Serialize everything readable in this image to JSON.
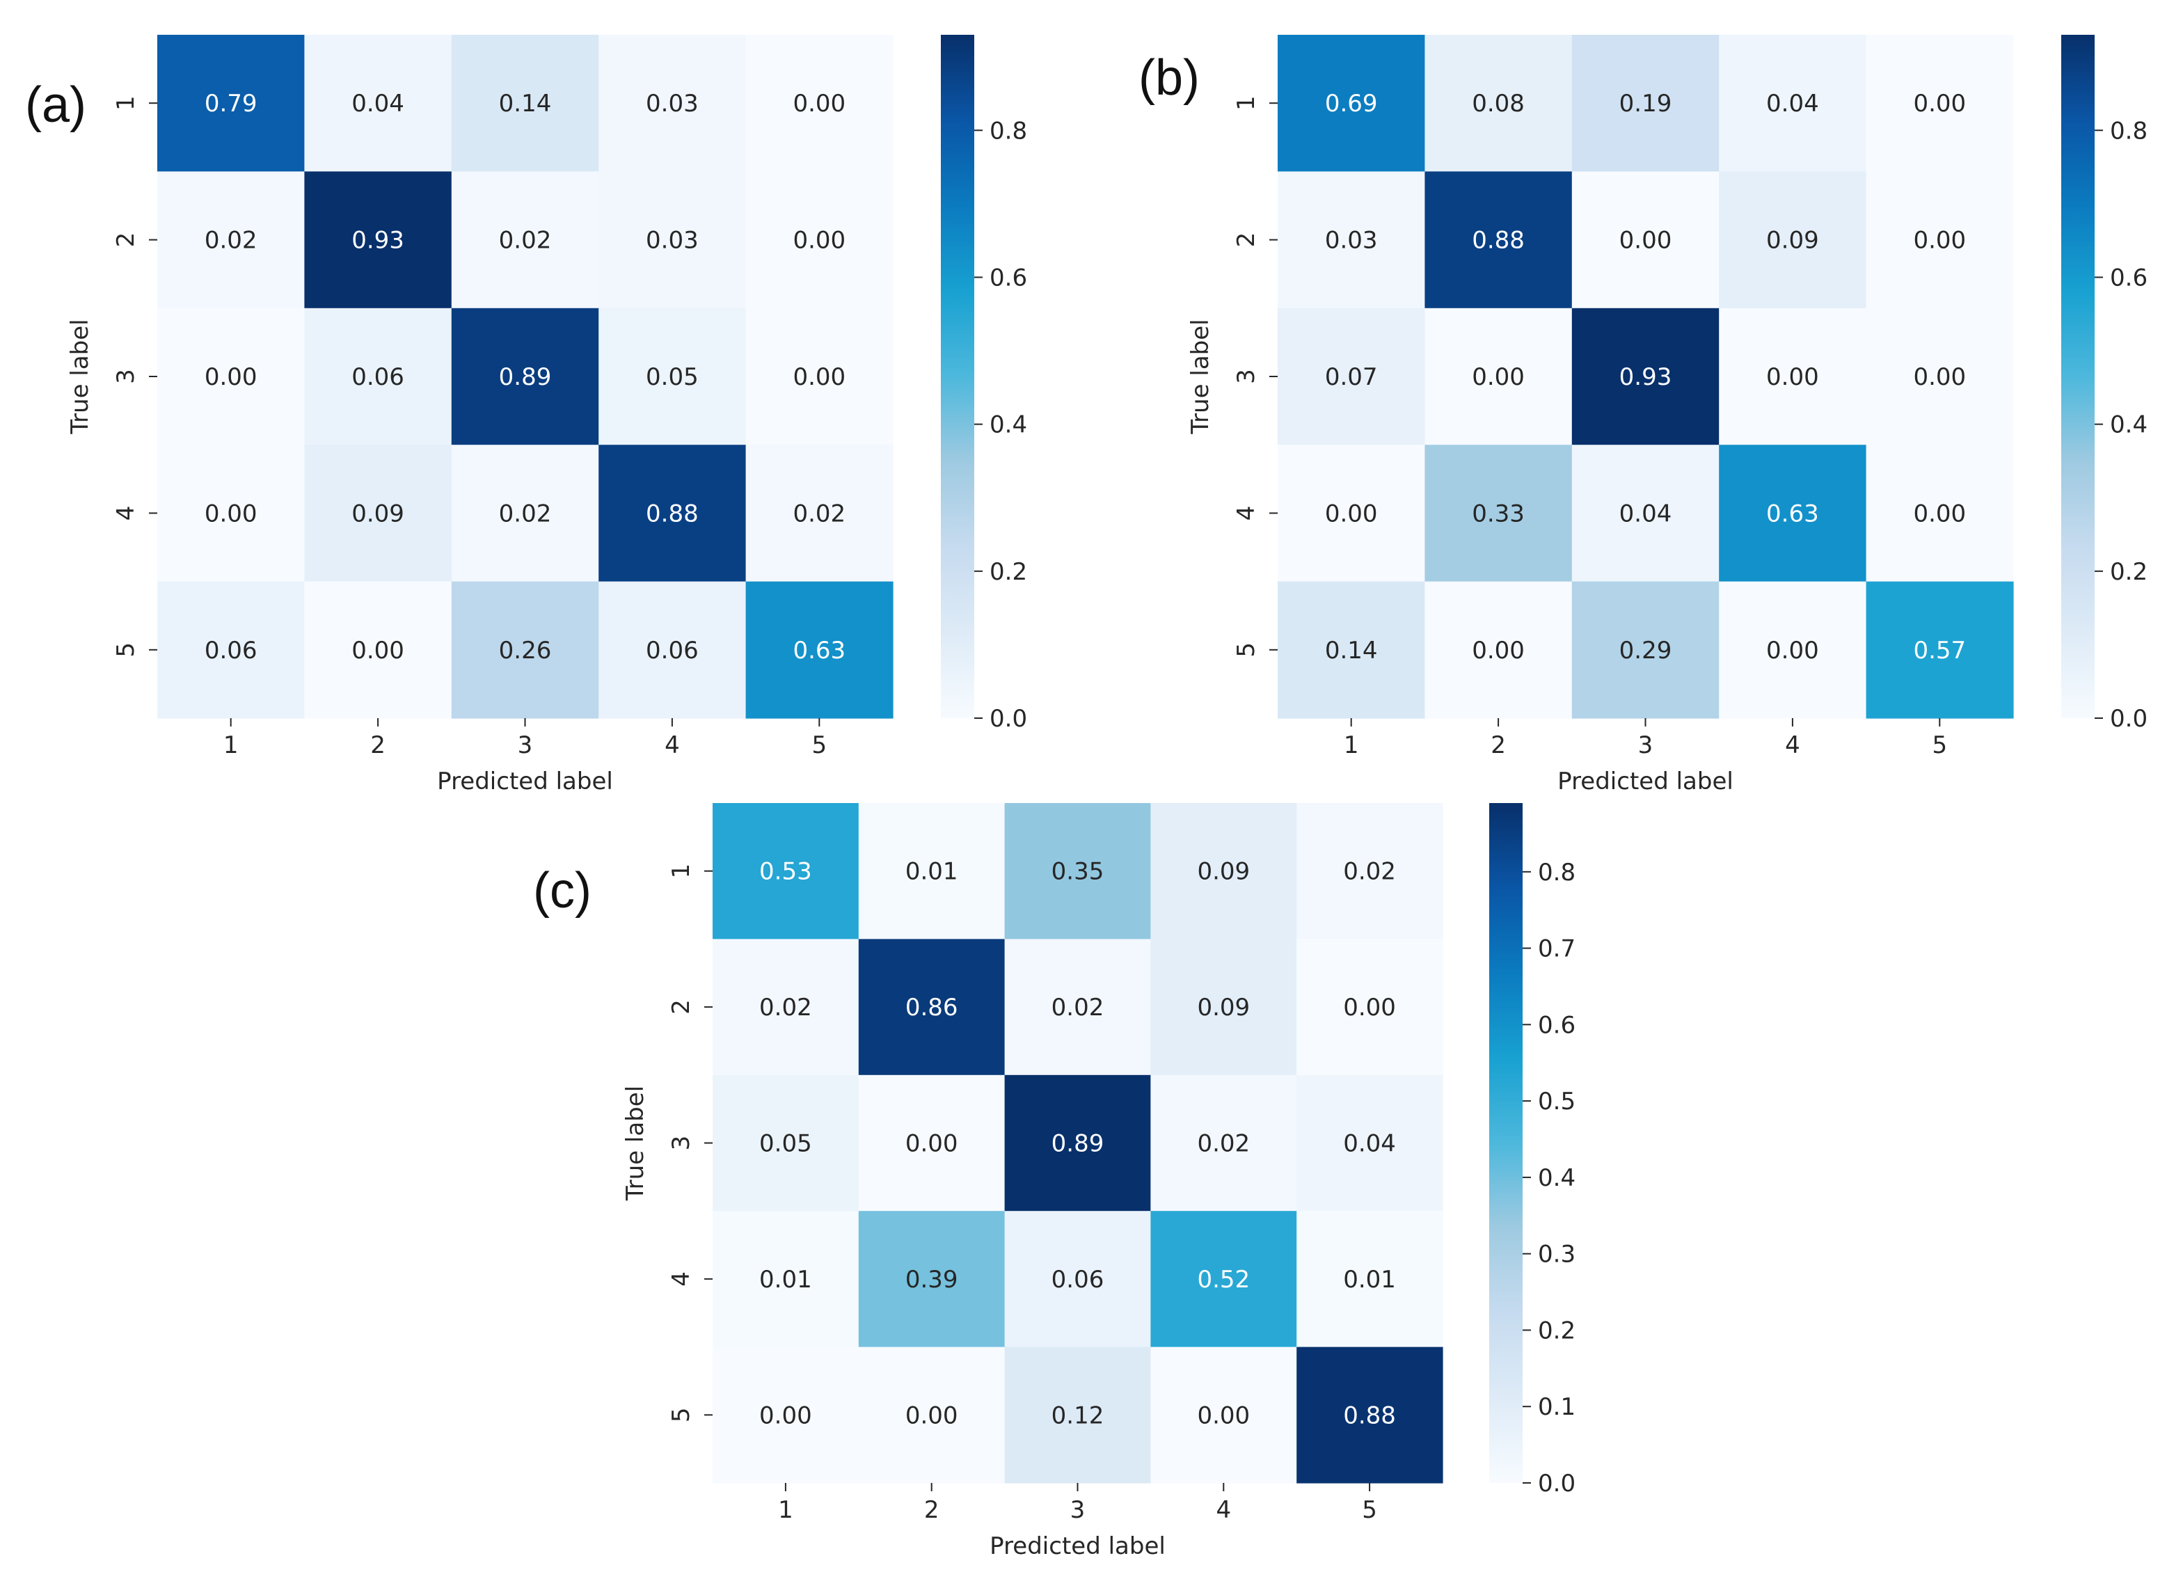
{
  "chart_data": [
    {
      "type": "heatmap",
      "panel_label": "(a)",
      "xlabel": "Predicted label",
      "ylabel": "True label",
      "x_categories": [
        "1",
        "2",
        "3",
        "4",
        "5"
      ],
      "y_categories": [
        "1",
        "2",
        "3",
        "4",
        "5"
      ],
      "values": [
        [
          "0.79",
          "0.04",
          "0.14",
          "0.03",
          "0.00"
        ],
        [
          "0.02",
          "0.93",
          "0.02",
          "0.03",
          "0.00"
        ],
        [
          "0.00",
          "0.06",
          "0.89",
          "0.05",
          "0.00"
        ],
        [
          "0.00",
          "0.09",
          "0.02",
          "0.88",
          "0.02"
        ],
        [
          "0.06",
          "0.00",
          "0.26",
          "0.06",
          "0.63"
        ]
      ],
      "colorbar": {
        "min": 0.0,
        "max": 0.93,
        "ticks": [
          "0.0",
          "0.2",
          "0.4",
          "0.6",
          "0.8"
        ]
      },
      "colormap": "Blues"
    },
    {
      "type": "heatmap",
      "panel_label": "(b)",
      "xlabel": "Predicted label",
      "ylabel": "True label",
      "x_categories": [
        "1",
        "2",
        "3",
        "4",
        "5"
      ],
      "y_categories": [
        "1",
        "2",
        "3",
        "4",
        "5"
      ],
      "values": [
        [
          "0.69",
          "0.08",
          "0.19",
          "0.04",
          "0.00"
        ],
        [
          "0.03",
          "0.88",
          "0.00",
          "0.09",
          "0.00"
        ],
        [
          "0.07",
          "0.00",
          "0.93",
          "0.00",
          "0.00"
        ],
        [
          "0.00",
          "0.33",
          "0.04",
          "0.63",
          "0.00"
        ],
        [
          "0.14",
          "0.00",
          "0.29",
          "0.00",
          "0.57"
        ]
      ],
      "colorbar": {
        "min": 0.0,
        "max": 0.93,
        "ticks": [
          "0.0",
          "0.2",
          "0.4",
          "0.6",
          "0.8"
        ]
      },
      "colormap": "Blues"
    },
    {
      "type": "heatmap",
      "panel_label": "(c)",
      "xlabel": "Predicted label",
      "ylabel": "True label",
      "x_categories": [
        "1",
        "2",
        "3",
        "4",
        "5"
      ],
      "y_categories": [
        "1",
        "2",
        "3",
        "4",
        "5"
      ],
      "values": [
        [
          "0.53",
          "0.01",
          "0.35",
          "0.09",
          "0.02"
        ],
        [
          "0.02",
          "0.86",
          "0.02",
          "0.09",
          "0.00"
        ],
        [
          "0.05",
          "0.00",
          "0.89",
          "0.02",
          "0.04"
        ],
        [
          "0.01",
          "0.39",
          "0.06",
          "0.52",
          "0.01"
        ],
        [
          "0.00",
          "0.00",
          "0.12",
          "0.00",
          "0.88"
        ]
      ],
      "colorbar": {
        "min": 0.0,
        "max": 0.89,
        "ticks": [
          "0.0",
          "0.1",
          "0.2",
          "0.3",
          "0.4",
          "0.5",
          "0.6",
          "0.7",
          "0.8"
        ]
      },
      "colormap": "Blues"
    }
  ]
}
